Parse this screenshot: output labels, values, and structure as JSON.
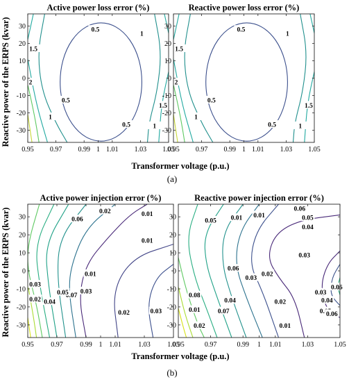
{
  "figure": {
    "ylabel": "Reactive power of the ERPS (kvar)",
    "xlabel": "Transformer voltage (p.u.)",
    "panel_a_label": "(a)",
    "panel_b_label": "(b)"
  },
  "chart_data": [
    {
      "type": "contour",
      "title": "Active power loss error (%)",
      "xlabel": "Transformer voltage (p.u.)",
      "ylabel": "Reactive power of the ERPS (kvar)",
      "xlim": [
        0.95,
        1.05
      ],
      "ylim": [
        -37,
        37
      ],
      "xticks": [
        "0.95",
        "0.97",
        "0.99",
        "1",
        "1.01",
        "1.03",
        "1.05"
      ],
      "yticks": [
        "30",
        "20",
        "10",
        "0",
        "-10",
        "-20",
        "-30"
      ],
      "contour_labels": [
        "0.5",
        "0.5",
        "0.5",
        "1",
        "1",
        "1",
        "1.5",
        "1.5",
        "2"
      ]
    },
    {
      "type": "contour",
      "title": "Reactive power loss error (%)",
      "xlabel": "Transformer voltage (p.u.)",
      "xlim": [
        0.95,
        1.05
      ],
      "ylim": [
        -37,
        37
      ],
      "xticks": [
        "0.95",
        "0.97",
        "0.99",
        "1",
        "1.01",
        "1.03",
        "1.05"
      ],
      "yticks": [
        "30",
        "20",
        "10",
        "0",
        "-10",
        "-20",
        "-30"
      ],
      "contour_labels": [
        "0.5",
        "0.5",
        "0.5",
        "1",
        "1",
        "1",
        "1.5",
        "1.5",
        "2"
      ]
    },
    {
      "type": "contour",
      "title": "Active power injection error (%)",
      "xlabel": "Transformer voltage (p.u.)",
      "ylabel": "Reactive power of the ERPS (kvar)",
      "xlim": [
        0.95,
        1.05
      ],
      "ylim": [
        -37,
        37
      ],
      "xticks": [
        "0.95",
        "0.97",
        "0.99",
        "1",
        "1.01",
        "1.03",
        "1.05"
      ],
      "yticks": [
        "30",
        "20",
        "10",
        "0",
        "-10",
        "-20",
        "-30"
      ],
      "contour_labels": [
        "0.03",
        "0.02",
        "0.01",
        "0.01",
        "0.01",
        "0.02",
        "0.03",
        "0.06",
        "0.07",
        "0.05",
        "0.04",
        "0.03",
        "0.02"
      ]
    },
    {
      "type": "contour",
      "title": "Reactive power injection error (%)",
      "xlabel": "Transformer voltage (p.u.)",
      "xlim": [
        0.95,
        1.05
      ],
      "ylim": [
        -37,
        37
      ],
      "xticks": [
        "0.95",
        "0.97",
        "0.99",
        "1",
        "1.01",
        "1.03",
        "1.05"
      ],
      "yticks": [
        "30",
        "20",
        "10",
        "0",
        "-10",
        "-20",
        "-30"
      ],
      "contour_labels": [
        "0.06",
        "0.05",
        "0.04",
        "0.03",
        "0.02",
        "0.01",
        "0.01",
        "0.03",
        "0.02",
        "0.01",
        "0.06",
        "0.05",
        "0.04",
        "0.07",
        "0.08",
        "0.01",
        "0.02",
        "0.03",
        "0.04",
        "0.05",
        "0.06"
      ]
    }
  ]
}
